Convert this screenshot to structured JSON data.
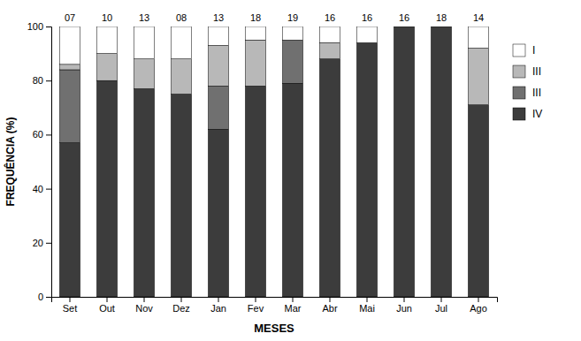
{
  "chart_data": {
    "type": "bar",
    "stacked": true,
    "categories": [
      "Set",
      "Out",
      "Nov",
      "Dez",
      "Jan",
      "Fev",
      "Mar",
      "Abr",
      "Mai",
      "Jun",
      "Jul",
      "Ago"
    ],
    "series": [
      {
        "name": "IV",
        "color": "#3c3c3c",
        "values": [
          57,
          80,
          77,
          75,
          62,
          78,
          79,
          88,
          94,
          100,
          100,
          71
        ]
      },
      {
        "name": "III",
        "color": "#707070",
        "values": [
          27,
          0,
          0,
          0,
          16,
          0,
          16,
          0,
          0,
          0,
          0,
          0
        ]
      },
      {
        "name": "III",
        "color": "#b8b8b8",
        "values": [
          2,
          10,
          11,
          13,
          15,
          17,
          0,
          6,
          0,
          0,
          0,
          21
        ]
      },
      {
        "name": "I",
        "color": "#ffffff",
        "values": [
          14,
          10,
          12,
          12,
          7,
          5,
          5,
          6,
          6,
          0,
          0,
          8
        ]
      }
    ],
    "annotations": [
      "07",
      "10",
      "13",
      "08",
      "13",
      "18",
      "19",
      "16",
      "16",
      "16",
      "18",
      "14"
    ],
    "x_label": "MESES",
    "y_label": "FREQUÊNCIA (%)",
    "ylim": [
      0,
      100
    ],
    "yticks": [
      0,
      20,
      40,
      60,
      80,
      100
    ],
    "grid": false,
    "legend": "right"
  }
}
